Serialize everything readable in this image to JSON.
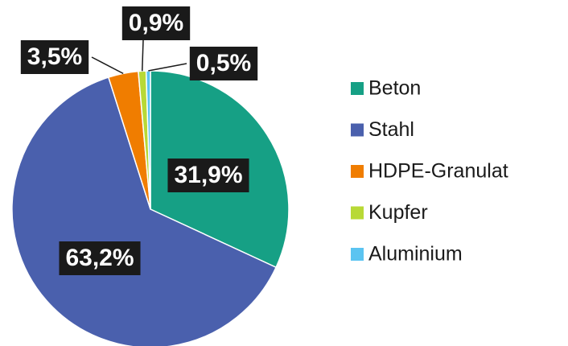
{
  "chart_data": {
    "type": "pie",
    "categories": [
      "Beton",
      "Stahl",
      "HDPE-Granulat",
      "Kupfer",
      "Aluminium"
    ],
    "values": [
      31.9,
      63.2,
      3.5,
      0.9,
      0.5
    ],
    "value_labels": [
      "31,9%",
      "63,2%",
      "3,5%",
      "0,9%",
      "0,5%"
    ],
    "colors": [
      "#16a085",
      "#4a60ad",
      "#f07d00",
      "#b8d936",
      "#5bc4f1"
    ],
    "legend": "right"
  }
}
